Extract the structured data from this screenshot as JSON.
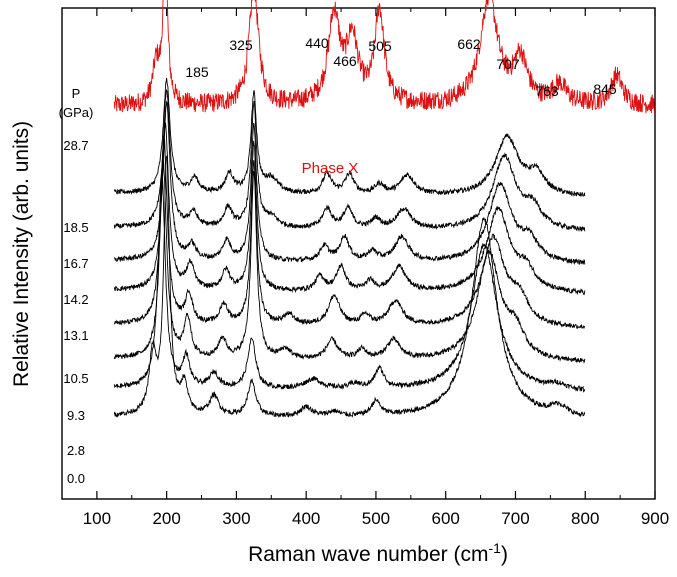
{
  "chart_data": {
    "type": "line",
    "title": "",
    "xlabel": "Raman wave number (cm",
    "xlabel_sup": "-1",
    "xlabel_end": ")",
    "ylabel": "Relative Intensity (arb. units)",
    "xlim": [
      50,
      900
    ],
    "x_ticks": [
      "100",
      "200",
      "300",
      "400",
      "500",
      "600",
      "700",
      "800",
      "900"
    ],
    "y_ticks_shown": false,
    "grid": false,
    "pressure_header": "P",
    "pressure_unit": "(GPa)",
    "phase_label": "Phase X",
    "colors": {
      "phase_x": "#dd1111",
      "spectra": "#000000",
      "axes": "#000000"
    },
    "peak_labels": [
      "185",
      "325",
      "440",
      "466",
      "505",
      "662",
      "707",
      "763",
      "845"
    ],
    "series": [
      {
        "name": "28.7",
        "color": "#dd1111",
        "x_range": [
          125,
          900
        ],
        "baseline": 0.8,
        "noise": 0.02,
        "slope": 0.0,
        "peaks": [
          [
            185,
            0.08,
            6
          ],
          [
            198,
            0.3,
            4
          ],
          [
            325,
            0.24,
            8
          ],
          [
            440,
            0.18,
            10
          ],
          [
            466,
            0.13,
            10
          ],
          [
            505,
            0.19,
            8
          ],
          [
            662,
            0.22,
            15
          ],
          [
            707,
            0.09,
            12
          ],
          [
            763,
            0.04,
            12
          ],
          [
            845,
            0.06,
            10
          ]
        ]
      },
      {
        "name": "18.5",
        "color": "#000000",
        "x_range": [
          125,
          800
        ],
        "baseline": 0.623,
        "noise": 0.005,
        "slope": -0.01,
        "peaks": [
          [
            200,
            0.23,
            6
          ],
          [
            240,
            0.03,
            7
          ],
          [
            290,
            0.04,
            7
          ],
          [
            325,
            0.2,
            5
          ],
          [
            350,
            0.03,
            12
          ],
          [
            430,
            0.04,
            8
          ],
          [
            462,
            0.04,
            8
          ],
          [
            505,
            0.02,
            8
          ],
          [
            545,
            0.04,
            12
          ],
          [
            688,
            0.12,
            20
          ],
          [
            730,
            0.04,
            15
          ]
        ]
      },
      {
        "name": "16.7",
        "color": "#000000",
        "x_range": [
          125,
          800
        ],
        "baseline": 0.553,
        "noise": 0.005,
        "slope": -0.01,
        "peaks": [
          [
            200,
            0.28,
            6
          ],
          [
            238,
            0.03,
            7
          ],
          [
            288,
            0.04,
            7
          ],
          [
            325,
            0.25,
            5
          ],
          [
            350,
            0.02,
            12
          ],
          [
            430,
            0.04,
            8
          ],
          [
            460,
            0.04,
            8
          ],
          [
            500,
            0.02,
            8
          ],
          [
            540,
            0.04,
            12
          ],
          [
            684,
            0.15,
            20
          ],
          [
            725,
            0.04,
            15
          ]
        ]
      },
      {
        "name": "14.2",
        "color": "#000000",
        "x_range": [
          125,
          800
        ],
        "baseline": 0.486,
        "noise": 0.005,
        "slope": -0.01,
        "peaks": [
          [
            200,
            0.32,
            6
          ],
          [
            236,
            0.03,
            7
          ],
          [
            286,
            0.04,
            7
          ],
          [
            325,
            0.28,
            5
          ],
          [
            426,
            0.03,
            8
          ],
          [
            455,
            0.05,
            8
          ],
          [
            495,
            0.02,
            8
          ],
          [
            537,
            0.05,
            12
          ],
          [
            678,
            0.16,
            20
          ],
          [
            720,
            0.04,
            15
          ]
        ]
      },
      {
        "name": "13.1",
        "color": "#000000",
        "x_range": [
          125,
          800
        ],
        "baseline": 0.425,
        "noise": 0.005,
        "slope": -0.01,
        "peaks": [
          [
            198,
            0.34,
            6
          ],
          [
            234,
            0.05,
            7
          ],
          [
            285,
            0.04,
            7
          ],
          [
            325,
            0.3,
            5
          ],
          [
            420,
            0.03,
            8
          ],
          [
            450,
            0.05,
            8
          ],
          [
            492,
            0.02,
            8
          ],
          [
            533,
            0.05,
            12
          ],
          [
            675,
            0.17,
            20
          ],
          [
            715,
            0.04,
            15
          ]
        ]
      },
      {
        "name": "10.5",
        "color": "#000000",
        "x_range": [
          125,
          800
        ],
        "baseline": 0.355,
        "noise": 0.005,
        "slope": -0.01,
        "peaks": [
          [
            196,
            0.38,
            6
          ],
          [
            232,
            0.06,
            6
          ],
          [
            282,
            0.04,
            7
          ],
          [
            325,
            0.33,
            5
          ],
          [
            375,
            0.02,
            10
          ],
          [
            440,
            0.06,
            10
          ],
          [
            485,
            0.02,
            8
          ],
          [
            528,
            0.05,
            12
          ],
          [
            668,
            0.18,
            20
          ],
          [
            705,
            0.05,
            15
          ]
        ]
      },
      {
        "name": "9.3",
        "color": "#000000",
        "x_range": [
          125,
          800
        ],
        "baseline": 0.285,
        "noise": 0.005,
        "slope": -0.01,
        "peaks": [
          [
            195,
            0.4,
            6
          ],
          [
            230,
            0.08,
            6
          ],
          [
            280,
            0.04,
            7
          ],
          [
            325,
            0.38,
            5
          ],
          [
            370,
            0.02,
            10
          ],
          [
            437,
            0.04,
            10
          ],
          [
            480,
            0.02,
            8
          ],
          [
            525,
            0.04,
            12
          ],
          [
            662,
            0.22,
            20
          ],
          [
            700,
            0.05,
            15
          ]
        ]
      },
      {
        "name": "2.8",
        "color": "#000000",
        "x_range": [
          125,
          800
        ],
        "baseline": 0.225,
        "noise": 0.005,
        "slope": -0.01,
        "peaks": [
          [
            193,
            0.44,
            6
          ],
          [
            228,
            0.06,
            6
          ],
          [
            268,
            0.03,
            8
          ],
          [
            322,
            0.1,
            7
          ],
          [
            410,
            0.02,
            15
          ],
          [
            470,
            0.01,
            10
          ],
          [
            505,
            0.04,
            8
          ],
          [
            655,
            0.3,
            22
          ],
          [
            760,
            0.01,
            15
          ]
        ]
      },
      {
        "name": "0.0",
        "color": "#000000",
        "x_range": [
          125,
          800
        ],
        "baseline": 0.168,
        "noise": 0.005,
        "slope": -0.01,
        "peaks": [
          [
            180,
            0.12,
            6
          ],
          [
            200,
            0.52,
            5
          ],
          [
            225,
            0.06,
            6
          ],
          [
            268,
            0.04,
            8
          ],
          [
            322,
            0.07,
            7
          ],
          [
            400,
            0.02,
            10
          ],
          [
            440,
            0.01,
            10
          ],
          [
            500,
            0.03,
            8
          ],
          [
            655,
            0.41,
            22
          ],
          [
            762,
            0.02,
            15
          ]
        ]
      }
    ]
  }
}
